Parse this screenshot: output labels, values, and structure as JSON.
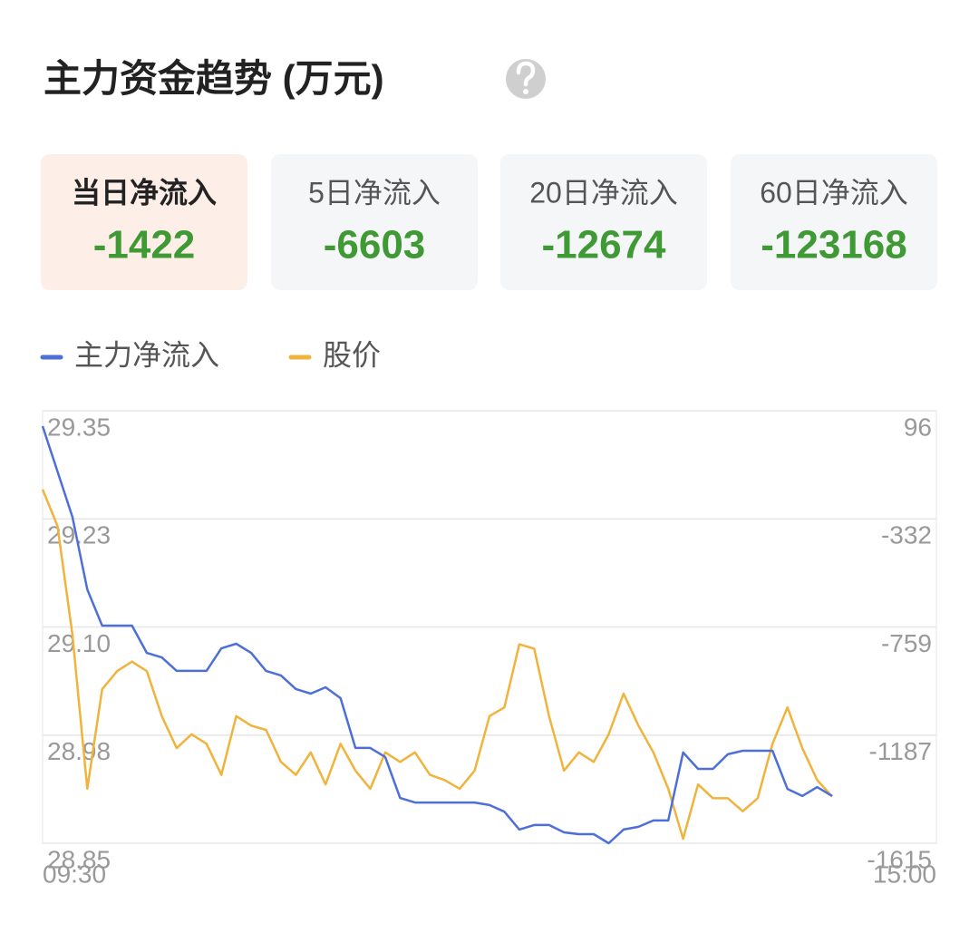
{
  "title": "主力资金趋势 (万元)",
  "cards": [
    {
      "label": "当日净流入",
      "value": -1422
    },
    {
      "label": "5日净流入",
      "value": -6603
    },
    {
      "label": "20日净流入",
      "value": -12674
    },
    {
      "label": "60日净流入",
      "value": -123168
    }
  ],
  "chart_data": {
    "type": "line",
    "x": [
      0,
      4,
      8,
      12,
      16,
      20,
      24,
      28,
      32,
      36,
      40,
      44,
      48,
      52,
      56,
      60,
      64,
      68,
      72,
      76,
      80,
      84,
      88,
      92,
      96,
      100,
      104,
      108,
      112,
      116,
      120,
      124,
      128,
      132,
      136,
      140,
      144,
      148,
      152,
      156,
      160,
      164,
      168,
      172,
      176,
      180,
      184,
      188,
      192,
      196,
      200,
      204,
      208,
      212
    ],
    "xlim": [
      0,
      240
    ],
    "xticks": [
      {
        "value": 0,
        "label": "09:30"
      },
      {
        "value": 240,
        "label": "15:00"
      }
    ],
    "ylim": [
      28.85,
      29.35
    ],
    "yticks": [
      {
        "value": 29.35,
        "label": "29.35"
      },
      {
        "value": 29.225,
        "label": "29.23"
      },
      {
        "value": 29.1,
        "label": "29.10"
      },
      {
        "value": 28.975,
        "label": "28.98"
      },
      {
        "value": 28.85,
        "label": "28.85"
      }
    ],
    "y2lim": [
      -1615,
      96
    ],
    "y2ticks": [
      96,
      {
        "value": -331.75,
        "label": "-332"
      },
      {
        "value": -759.5,
        "label": "-759"
      },
      {
        "value": -1187.25,
        "label": "-1187"
      },
      -1615
    ],
    "grid": true,
    "series": [
      {
        "name": "主力净流入",
        "color": "#4e6fd8",
        "axis": "y2",
        "values": [
          35,
          -144,
          -324,
          -611,
          -754,
          -754,
          -754,
          -862,
          -880,
          -933,
          -933,
          -933,
          -844,
          -826,
          -862,
          -933,
          -951,
          -1005,
          -1023,
          -998,
          -1041,
          -1238,
          -1238,
          -1274,
          -1436,
          -1454,
          -1454,
          -1454,
          -1454,
          -1454,
          -1464,
          -1490,
          -1561,
          -1543,
          -1543,
          -1572,
          -1579,
          -1579,
          -1615,
          -1561,
          -1550,
          -1525,
          -1525,
          -1256,
          -1321,
          -1321,
          -1263,
          -1249,
          -1249,
          -1249,
          -1400,
          -1428,
          -1393,
          -1428
        ]
      },
      {
        "name": "股价",
        "color": "#f0b33c",
        "values": [
          29.259,
          29.217,
          29.091,
          28.913,
          29.028,
          29.049,
          29.06,
          29.049,
          28.997,
          28.96,
          28.976,
          28.965,
          28.929,
          28.997,
          28.986,
          28.981,
          28.944,
          28.929,
          28.955,
          28.918,
          28.965,
          28.934,
          28.913,
          28.955,
          28.944,
          28.955,
          28.929,
          28.923,
          28.913,
          28.934,
          28.997,
          29.007,
          29.08,
          29.075,
          28.997,
          28.934,
          28.955,
          28.944,
          28.976,
          29.023,
          28.986,
          28.955,
          28.913,
          28.855,
          28.918,
          28.902,
          28.902,
          28.887,
          28.902,
          28.965,
          29.007,
          28.96,
          28.923,
          28.904
        ]
      }
    ]
  }
}
